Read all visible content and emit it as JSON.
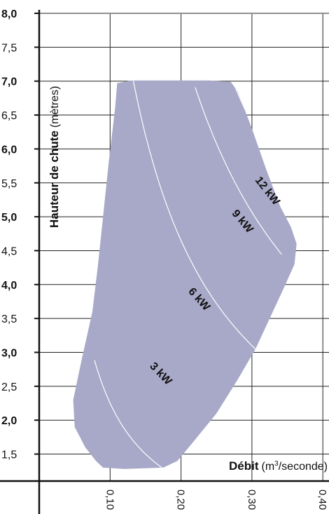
{
  "chart_data": {
    "type": "area",
    "title": "",
    "ylabel": {
      "bold": "Hauteur de chute",
      "normal": "(mètres)"
    },
    "xlabel": {
      "bold": "Débit",
      "normal_pre": "(m",
      "sup": "3",
      "normal_post": "/seconde)"
    },
    "xlim": [
      0.0,
      0.41
    ],
    "ylim": [
      1.3,
      8.0
    ],
    "xticks": [
      {
        "value": 0.1,
        "label": "0,10"
      },
      {
        "value": 0.2,
        "label": "0,20"
      },
      {
        "value": 0.3,
        "label": "0,30"
      },
      {
        "value": 0.4,
        "label": "0,40"
      }
    ],
    "yticks": [
      {
        "value": 8.0,
        "label": "8,0",
        "bold": true
      },
      {
        "value": 7.5,
        "label": "7,5",
        "bold": false
      },
      {
        "value": 7.0,
        "label": "7,0",
        "bold": true
      },
      {
        "value": 6.5,
        "label": "6,5",
        "bold": false
      },
      {
        "value": 6.0,
        "label": "6,0",
        "bold": true
      },
      {
        "value": 5.5,
        "label": "5,5",
        "bold": false
      },
      {
        "value": 5.0,
        "label": "5,0",
        "bold": true
      },
      {
        "value": 4.5,
        "label": "4,5",
        "bold": false
      },
      {
        "value": 4.0,
        "label": "4,0",
        "bold": true
      },
      {
        "value": 3.5,
        "label": "3,5",
        "bold": false
      },
      {
        "value": 3.0,
        "label": "3,0",
        "bold": true
      },
      {
        "value": 2.5,
        "label": "2,5",
        "bold": false
      },
      {
        "value": 2.0,
        "label": "2,0",
        "bold": true
      },
      {
        "value": 1.5,
        "label": "1,5",
        "bold": false
      }
    ],
    "grid": true,
    "region": {
      "color": "#a8a8c8",
      "boundary": [
        [
          0.11,
          6.97
        ],
        [
          0.13,
          7.01
        ],
        [
          0.18,
          7.01
        ],
        [
          0.24,
          7.01
        ],
        [
          0.27,
          6.99
        ],
        [
          0.28,
          6.85
        ],
        [
          0.3,
          6.3
        ],
        [
          0.32,
          5.7
        ],
        [
          0.34,
          5.15
        ],
        [
          0.355,
          4.85
        ],
        [
          0.363,
          4.6
        ],
        [
          0.36,
          4.3
        ],
        [
          0.345,
          3.95
        ],
        [
          0.325,
          3.5
        ],
        [
          0.305,
          3.05
        ],
        [
          0.28,
          2.6
        ],
        [
          0.25,
          2.1
        ],
        [
          0.215,
          1.65
        ],
        [
          0.195,
          1.4
        ],
        [
          0.175,
          1.3
        ],
        [
          0.12,
          1.28
        ],
        [
          0.09,
          1.3
        ],
        [
          0.08,
          1.4
        ],
        [
          0.065,
          1.6
        ],
        [
          0.05,
          1.9
        ],
        [
          0.048,
          2.3
        ],
        [
          0.06,
          2.9
        ],
        [
          0.075,
          3.6
        ],
        [
          0.083,
          4.3
        ],
        [
          0.09,
          5.0
        ],
        [
          0.098,
          5.8
        ],
        [
          0.107,
          6.6
        ],
        [
          0.11,
          6.97
        ]
      ]
    },
    "power_curves": [
      {
        "label": "3 kW",
        "k": 0.225,
        "x_from": 0.078,
        "x_to": 0.222,
        "label_at": [
          0.168,
          2.65
        ],
        "label_angle": 46
      },
      {
        "label": "6 kW",
        "k": 0.93,
        "x_from": 0.132,
        "x_to": 0.31,
        "label_at": [
          0.222,
          3.75
        ],
        "label_angle": 48
      },
      {
        "label": "9 kW",
        "k": 1.52,
        "x_from": 0.22,
        "x_to": 0.342,
        "label_at": [
          0.283,
          4.9
        ],
        "label_angle": 50
      },
      {
        "label": "12 kW",
        "k": 1.91,
        "x_from": 0.27,
        "x_to": 0.362,
        "label_at": [
          0.318,
          5.35
        ],
        "label_angle": 52
      }
    ]
  }
}
